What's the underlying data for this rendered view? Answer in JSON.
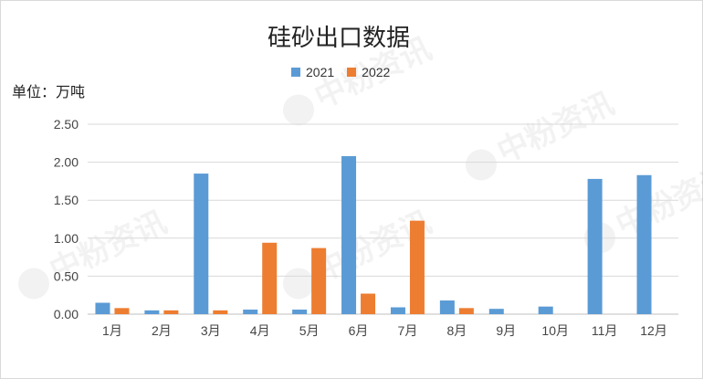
{
  "watermark": "中粉资讯",
  "chart_data": {
    "type": "bar",
    "title": "硅砂出口数据",
    "unit_label": "单位：万吨",
    "categories": [
      "1月",
      "2月",
      "3月",
      "4月",
      "5月",
      "6月",
      "7月",
      "8月",
      "9月",
      "10月",
      "11月",
      "12月"
    ],
    "series": [
      {
        "name": "2021",
        "color": "#5b9bd5",
        "values": [
          0.15,
          0.05,
          1.85,
          0.06,
          0.06,
          2.08,
          0.09,
          0.18,
          0.07,
          0.1,
          1.78,
          1.83
        ]
      },
      {
        "name": "2022",
        "color": "#ed7d31",
        "values": [
          0.08,
          0.05,
          0.05,
          0.94,
          0.87,
          0.27,
          1.23,
          0.08,
          null,
          null,
          null,
          null
        ]
      }
    ],
    "y_ticks": [
      "0.00",
      "0.50",
      "1.00",
      "1.50",
      "2.00",
      "2.50"
    ],
    "ylim": [
      0,
      2.5
    ],
    "grid": true,
    "legend_position": "top-center"
  }
}
